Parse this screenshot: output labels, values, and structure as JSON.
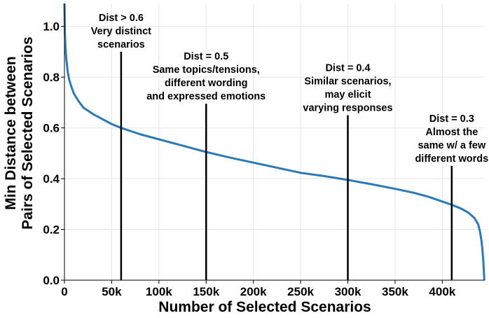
{
  "chart_data": {
    "type": "line",
    "title": "",
    "xlabel": "Number of Selected Scenarios",
    "ylabel_lines": [
      "Min Distance between",
      "Pairs of Selected Scenarios"
    ],
    "xlim": [
      0,
      445000
    ],
    "ylim": [
      0,
      1.09
    ],
    "grid": true,
    "legend": "none",
    "color": "#2a7ab9",
    "x_ticks": [
      {
        "value": 0,
        "label": "0"
      },
      {
        "value": 50000,
        "label": "50k"
      },
      {
        "value": 100000,
        "label": "100k"
      },
      {
        "value": 150000,
        "label": "150k"
      },
      {
        "value": 200000,
        "label": "200k"
      },
      {
        "value": 250000,
        "label": "250k"
      },
      {
        "value": 300000,
        "label": "300k"
      },
      {
        "value": 350000,
        "label": "350k"
      },
      {
        "value": 400000,
        "label": "400k"
      }
    ],
    "y_ticks": [
      {
        "value": 0.0,
        "label": "0.0"
      },
      {
        "value": 0.2,
        "label": "0.2"
      },
      {
        "value": 0.4,
        "label": "0.4"
      },
      {
        "value": 0.6,
        "label": "0.6"
      },
      {
        "value": 0.8,
        "label": "0.8"
      },
      {
        "value": 1.0,
        "label": "1.0"
      }
    ],
    "series": [
      {
        "name": "min distance",
        "x": [
          0,
          500,
          1000,
          2000,
          3500,
          5000,
          7500,
          10000,
          15000,
          20000,
          30000,
          40000,
          50000,
          60000,
          80000,
          100000,
          125000,
          150000,
          175000,
          200000,
          225000,
          250000,
          275000,
          300000,
          325000,
          350000,
          370000,
          385000,
          400000,
          410000,
          420000,
          428000,
          434000,
          438000,
          440000,
          441500,
          442500,
          443500,
          444000,
          444500
        ],
        "y": [
          1.09,
          0.97,
          0.92,
          0.87,
          0.82,
          0.79,
          0.76,
          0.735,
          0.705,
          0.68,
          0.655,
          0.635,
          0.615,
          0.6,
          0.575,
          0.555,
          0.53,
          0.505,
          0.483,
          0.463,
          0.443,
          0.423,
          0.41,
          0.395,
          0.378,
          0.36,
          0.344,
          0.329,
          0.31,
          0.297,
          0.282,
          0.265,
          0.245,
          0.22,
          0.19,
          0.155,
          0.12,
          0.07,
          0.035,
          0.0
        ]
      }
    ],
    "annotations": [
      {
        "x": 60000,
        "y_top": 0.9,
        "lines": [
          "Dist > 0.6",
          "Very distinct",
          "scenarios"
        ]
      },
      {
        "x": 150000,
        "y_top": 0.695,
        "lines": [
          "Dist = 0.5",
          "Same topics/tensions,",
          "different wording",
          "and expressed emotions"
        ]
      },
      {
        "x": 300000,
        "y_top": 0.65,
        "lines": [
          "Dist = 0.4",
          "Similar scenarios,",
          "may elicit",
          "varying responses"
        ]
      },
      {
        "x": 410000,
        "y_top": 0.45,
        "lines": [
          "Dist = 0.3",
          "Almost the",
          "same w/ a few",
          "different words"
        ]
      }
    ]
  }
}
